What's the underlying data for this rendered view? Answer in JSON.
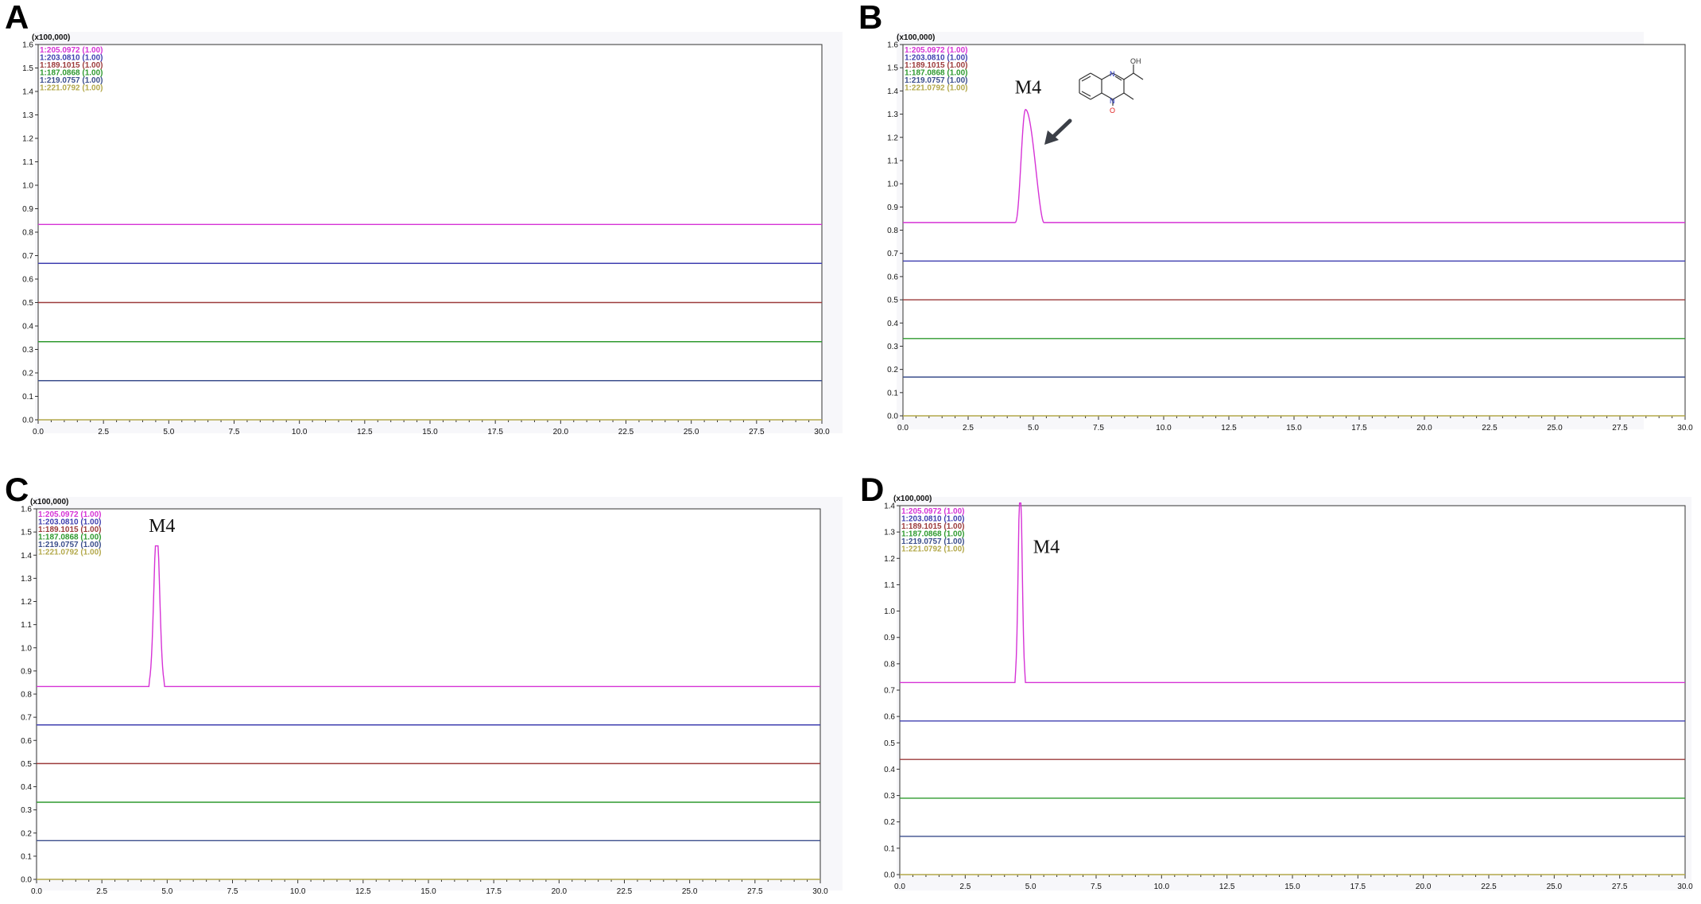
{
  "figure": {
    "colors": {
      "trace_1": "#d633d6",
      "trace_2": "#3f3fb0",
      "trace_3": "#9c3b3b",
      "trace_4": "#2e9a2e",
      "trace_5": "#3b4e8c",
      "trace_6": "#b3a84a",
      "axis": "#333333",
      "plot_bg": "#f7f7fa",
      "arrow": "#3b3f47",
      "oxygen_label": "#e02020",
      "nitrogen_label": "#2030c0"
    },
    "structure": {
      "icon": "quinoxaline-n-oxide-structure-icon",
      "atoms": {
        "n_top": "N",
        "n_bottom": "N",
        "o_bottom": "O",
        "oh": "OH"
      }
    },
    "arrow_icon": "arrow-down-left-icon"
  },
  "chart_data": [
    {
      "panel": "A",
      "type": "line",
      "scale_label": "(x100,000)",
      "xlim": [
        0,
        30
      ],
      "ylim": [
        0,
        1.6
      ],
      "x_ticks": [
        "0.0",
        "2.5",
        "5.0",
        "7.5",
        "10.0",
        "12.5",
        "15.0",
        "17.5",
        "20.0",
        "22.5",
        "25.0",
        "27.5",
        "30.0"
      ],
      "y_ticks": [
        "0.0",
        "0.1",
        "0.2",
        "0.3",
        "0.4",
        "0.5",
        "0.6",
        "0.7",
        "0.8",
        "0.9",
        "1.0",
        "1.1",
        "1.2",
        "1.3",
        "1.4",
        "1.5",
        "1.6"
      ],
      "series": [
        {
          "name": "1:205.0972 (1.00)",
          "baseline": 0.833,
          "peak": null
        },
        {
          "name": "1:203.0810 (1.00)",
          "baseline": 0.667,
          "peak": null
        },
        {
          "name": "1:189.1015 (1.00)",
          "baseline": 0.5,
          "peak": null
        },
        {
          "name": "1:187.0868 (1.00)",
          "baseline": 0.333,
          "peak": null
        },
        {
          "name": "1:219.0757 (1.00)",
          "baseline": 0.167,
          "peak": null
        },
        {
          "name": "1:221.0792 (1.00)",
          "baseline": 0.0,
          "peak": null
        }
      ],
      "annotations": []
    },
    {
      "panel": "B",
      "type": "line",
      "scale_label": "(x100,000)",
      "xlim": [
        0,
        30
      ],
      "ylim": [
        0,
        1.6
      ],
      "x_ticks": [
        "0.0",
        "2.5",
        "5.0",
        "7.5",
        "10.0",
        "12.5",
        "15.0",
        "17.5",
        "20.0",
        "22.5",
        "25.0",
        "27.5",
        "30.0"
      ],
      "y_ticks": [
        "0.0",
        "0.1",
        "0.2",
        "0.3",
        "0.4",
        "0.5",
        "0.6",
        "0.7",
        "0.8",
        "0.9",
        "1.0",
        "1.1",
        "1.2",
        "1.3",
        "1.4",
        "1.5",
        "1.6"
      ],
      "series": [
        {
          "name": "1:205.0972 (1.00)",
          "baseline": 0.833,
          "peak": {
            "rt": 4.7,
            "apex": 1.32,
            "start": 4.3,
            "end": 5.4,
            "shape": "tailed"
          }
        },
        {
          "name": "1:203.0810 (1.00)",
          "baseline": 0.667,
          "peak": null
        },
        {
          "name": "1:189.1015 (1.00)",
          "baseline": 0.5,
          "peak": null
        },
        {
          "name": "1:187.0868 (1.00)",
          "baseline": 0.333,
          "peak": null
        },
        {
          "name": "1:219.0757 (1.00)",
          "baseline": 0.167,
          "peak": null
        },
        {
          "name": "1:221.0792 (1.00)",
          "baseline": 0.0,
          "peak": null
        }
      ],
      "annotations": [
        {
          "text": "M4",
          "x": 4.8,
          "y": 1.39
        }
      ],
      "has_structure": true
    },
    {
      "panel": "C",
      "type": "line",
      "scale_label": "(x100,000)",
      "xlim": [
        0,
        30
      ],
      "ylim": [
        0,
        1.6
      ],
      "x_ticks": [
        "0.0",
        "2.5",
        "5.0",
        "7.5",
        "10.0",
        "12.5",
        "15.0",
        "17.5",
        "20.0",
        "22.5",
        "25.0",
        "27.5",
        "30.0"
      ],
      "y_ticks": [
        "0.0",
        "0.1",
        "0.2",
        "0.3",
        "0.4",
        "0.5",
        "0.6",
        "0.7",
        "0.8",
        "0.9",
        "1.0",
        "1.1",
        "1.2",
        "1.3",
        "1.4",
        "1.5",
        "1.6"
      ],
      "series": [
        {
          "name": "1:205.0972 (1.00)",
          "baseline": 0.833,
          "peak": {
            "rt": 4.6,
            "apex": 1.44,
            "start": 4.3,
            "end": 4.9,
            "shape": "narrow"
          }
        },
        {
          "name": "1:203.0810 (1.00)",
          "baseline": 0.667,
          "peak": null
        },
        {
          "name": "1:189.1015 (1.00)",
          "baseline": 0.5,
          "peak": null
        },
        {
          "name": "1:187.0868 (1.00)",
          "baseline": 0.333,
          "peak": null
        },
        {
          "name": "1:219.0757 (1.00)",
          "baseline": 0.167,
          "peak": null
        },
        {
          "name": "1:221.0792 (1.00)",
          "baseline": 0.0,
          "peak": null
        }
      ],
      "annotations": [
        {
          "text": "M4",
          "x": 4.8,
          "y": 1.5
        }
      ]
    },
    {
      "panel": "D",
      "type": "line",
      "scale_label": "(x100,000)",
      "xlim": [
        0,
        30
      ],
      "ylim": [
        0,
        1.4
      ],
      "x_ticks": [
        "0.0",
        "2.5",
        "5.0",
        "7.5",
        "10.0",
        "12.5",
        "15.0",
        "17.5",
        "20.0",
        "22.5",
        "25.0",
        "27.5",
        "30.0"
      ],
      "y_ticks": [
        "0.0",
        "0.1",
        "0.2",
        "0.3",
        "0.4",
        "0.5",
        "0.6",
        "0.7",
        "0.8",
        "0.9",
        "1.0",
        "1.1",
        "1.2",
        "1.3",
        "1.4"
      ],
      "series": [
        {
          "name": "1:205.0972 (1.00)",
          "baseline": 0.729,
          "peak": {
            "rt": 4.6,
            "apex": 1.41,
            "start": 4.4,
            "end": 4.8,
            "shape": "narrow"
          }
        },
        {
          "name": "1:203.0810 (1.00)",
          "baseline": 0.583,
          "peak": null
        },
        {
          "name": "1:189.1015 (1.00)",
          "baseline": 0.437,
          "peak": null
        },
        {
          "name": "1:187.0868 (1.00)",
          "baseline": 0.29,
          "peak": null
        },
        {
          "name": "1:219.0757 (1.00)",
          "baseline": 0.145,
          "peak": null
        },
        {
          "name": "1:221.0792 (1.00)",
          "baseline": 0.0,
          "peak": null
        }
      ],
      "annotations": [
        {
          "text": "M4",
          "x": 5.6,
          "y": 1.22
        }
      ]
    }
  ]
}
